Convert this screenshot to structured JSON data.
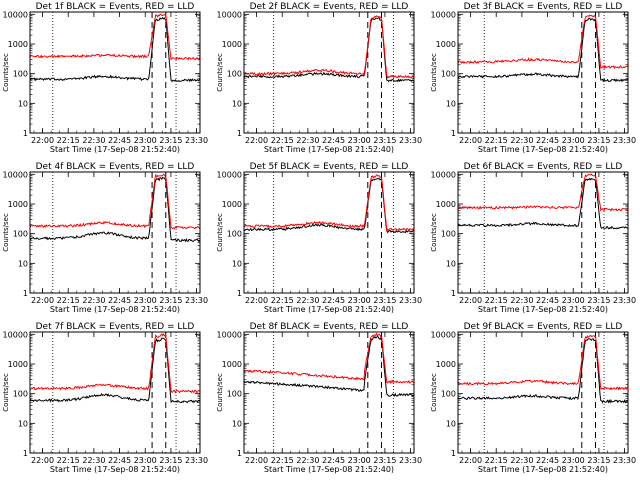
{
  "figure": {
    "ylabel": "Counts/sec",
    "xlabel": "Start Time (17-Sep-08 21:52:40)"
  },
  "chart_data": [
    {
      "type": "line",
      "title": "Det 1f BLACK = Events, RED = LLD",
      "ylabel": "Counts/sec",
      "xlabel": "Start Time (17-Sep-08 21:52:40)",
      "log_y": true,
      "ylim": [
        1,
        12000
      ],
      "yticks": [
        1,
        10,
        100,
        1000,
        10000
      ],
      "xlim": [
        "21:52:40",
        "23:32:00"
      ],
      "xticks": [
        "22:00",
        "22:15",
        "22:30",
        "22:45",
        "23:00",
        "23:15",
        "23:30"
      ],
      "dotted_lines": [
        "22:06",
        "23:18"
      ],
      "dashed_lines": [
        "23:04",
        "23:12"
      ],
      "series": [
        {
          "name": "Events",
          "color": "#000000",
          "base": 65,
          "bump": 1.25,
          "peak": 7500,
          "post": 60
        },
        {
          "name": "LLD",
          "color": "#ff0000",
          "base": 380,
          "bump": 1.1,
          "peak": 9800,
          "post": 320
        }
      ]
    },
    {
      "type": "line",
      "title": "Det 2f BLACK = Events, RED = LLD",
      "ylabel": "Counts/sec",
      "xlabel": "Start Time (17-Sep-08 21:52:40)",
      "log_y": true,
      "ylim": [
        1,
        12000
      ],
      "yticks": [
        1,
        10,
        100,
        1000,
        10000
      ],
      "xlim": [
        "21:52:40",
        "23:32:00"
      ],
      "xticks": [
        "22:00",
        "22:15",
        "22:30",
        "22:45",
        "23:00",
        "23:15",
        "23:30"
      ],
      "dotted_lines": [
        "22:10",
        "23:20"
      ],
      "dashed_lines": [
        "23:05",
        "23:13"
      ],
      "series": [
        {
          "name": "Events",
          "color": "#000000",
          "base": 80,
          "bump": 1.25,
          "peak": 7500,
          "post": 60
        },
        {
          "name": "LLD",
          "color": "#ff0000",
          "base": 100,
          "bump": 1.3,
          "peak": 8500,
          "post": 80
        }
      ]
    },
    {
      "type": "line",
      "title": "Det 3f BLACK = Events, RED = LLD",
      "ylabel": "Counts/sec",
      "xlabel": "Start Time (17-Sep-08 21:52:40)",
      "log_y": true,
      "ylim": [
        1,
        12000
      ],
      "yticks": [
        1,
        10,
        100,
        1000,
        10000
      ],
      "xlim": [
        "21:52:40",
        "23:32:00"
      ],
      "xticks": [
        "22:00",
        "22:15",
        "22:30",
        "22:45",
        "23:00",
        "23:15",
        "23:30"
      ],
      "dotted_lines": [
        "22:08",
        "23:18"
      ],
      "dashed_lines": [
        "23:05",
        "23:13"
      ],
      "series": [
        {
          "name": "Events",
          "color": "#000000",
          "base": 80,
          "bump": 1.2,
          "peak": 7000,
          "post": 60
        },
        {
          "name": "LLD",
          "color": "#ff0000",
          "base": 250,
          "bump": 1.2,
          "peak": 9000,
          "post": 170
        }
      ]
    },
    {
      "type": "line",
      "title": "Det 4f BLACK = Events, RED = LLD",
      "ylabel": "Counts/sec",
      "xlabel": "Start Time (17-Sep-08 21:52:40)",
      "log_y": true,
      "ylim": [
        1,
        12000
      ],
      "yticks": [
        1,
        10,
        100,
        1000,
        10000
      ],
      "xlim": [
        "21:52:40",
        "23:32:00"
      ],
      "xticks": [
        "22:00",
        "22:15",
        "22:30",
        "22:45",
        "23:00",
        "23:15",
        "23:30"
      ],
      "dotted_lines": [
        "22:06",
        "23:18"
      ],
      "dashed_lines": [
        "23:04",
        "23:12"
      ],
      "series": [
        {
          "name": "Events",
          "color": "#000000",
          "base": 70,
          "bump": 1.5,
          "peak": 7500,
          "post": 60
        },
        {
          "name": "LLD",
          "color": "#ff0000",
          "base": 180,
          "bump": 1.3,
          "peak": 9800,
          "post": 160
        }
      ]
    },
    {
      "type": "line",
      "title": "Det 5f BLACK = Events, RED = LLD",
      "ylabel": "Counts/sec",
      "xlabel": "Start Time (17-Sep-08 21:52:40)",
      "log_y": true,
      "ylim": [
        1,
        12000
      ],
      "yticks": [
        1,
        10,
        100,
        1000,
        10000
      ],
      "xlim": [
        "21:52:40",
        "23:32:00"
      ],
      "xticks": [
        "22:00",
        "22:15",
        "22:30",
        "22:45",
        "23:00",
        "23:15",
        "23:30"
      ],
      "dotted_lines": [
        "22:10",
        "23:20"
      ],
      "dashed_lines": [
        "23:05",
        "23:13"
      ],
      "series": [
        {
          "name": "Events",
          "color": "#000000",
          "base": 140,
          "bump": 1.4,
          "peak": 7000,
          "post": 120
        },
        {
          "name": "LLD",
          "color": "#ff0000",
          "base": 180,
          "bump": 1.3,
          "peak": 9000,
          "post": 140
        }
      ]
    },
    {
      "type": "line",
      "title": "Det 6f BLACK = Events, RED = LLD",
      "ylabel": "Counts/sec",
      "xlabel": "Start Time (17-Sep-08 21:52:40)",
      "log_y": true,
      "ylim": [
        1,
        12000
      ],
      "yticks": [
        1,
        10,
        100,
        1000,
        10000
      ],
      "xlim": [
        "21:52:40",
        "23:32:00"
      ],
      "xticks": [
        "22:00",
        "22:15",
        "22:30",
        "22:45",
        "23:00",
        "23:15",
        "23:30"
      ],
      "dotted_lines": [
        "22:08",
        "23:18"
      ],
      "dashed_lines": [
        "23:05",
        "23:13"
      ],
      "series": [
        {
          "name": "Events",
          "color": "#000000",
          "base": 190,
          "bump": 1.15,
          "peak": 7000,
          "post": 160
        },
        {
          "name": "LLD",
          "color": "#ff0000",
          "base": 750,
          "bump": 1.05,
          "peak": 9500,
          "post": 650
        }
      ]
    },
    {
      "type": "line",
      "title": "Det 7f BLACK = Events, RED = LLD",
      "ylabel": "Counts/sec",
      "xlabel": "Start Time (17-Sep-08 21:52:40)",
      "log_y": true,
      "ylim": [
        1,
        12000
      ],
      "yticks": [
        1,
        10,
        100,
        1000,
        10000
      ],
      "xlim": [
        "21:52:40",
        "23:32:00"
      ],
      "xticks": [
        "22:00",
        "22:15",
        "22:30",
        "22:45",
        "23:00",
        "23:15",
        "23:30"
      ],
      "dotted_lines": [
        "22:06",
        "23:18"
      ],
      "dashed_lines": [
        "23:04",
        "23:12"
      ],
      "series": [
        {
          "name": "Events",
          "color": "#000000",
          "base": 60,
          "bump": 1.5,
          "peak": 7000,
          "post": 55
        },
        {
          "name": "LLD",
          "color": "#ff0000",
          "base": 150,
          "bump": 1.3,
          "peak": 9500,
          "post": 120
        }
      ]
    },
    {
      "type": "line",
      "title": "Det 8f BLACK = Events, RED = LLD",
      "ylabel": "Counts/sec",
      "xlabel": "Start Time (17-Sep-08 21:52:40)",
      "log_y": true,
      "ylim": [
        1,
        12000
      ],
      "yticks": [
        1,
        10,
        100,
        1000,
        10000
      ],
      "xlim": [
        "21:52:40",
        "23:32:00"
      ],
      "xticks": [
        "22:00",
        "22:15",
        "22:30",
        "22:45",
        "23:00",
        "23:15",
        "23:30"
      ],
      "dotted_lines": [
        "22:10",
        "23:20"
      ],
      "dashed_lines": [
        "23:05",
        "23:13"
      ],
      "series": [
        {
          "name": "Events",
          "color": "#000000",
          "base": 250,
          "bump": 0.5,
          "peak": 8000,
          "post": 90
        },
        {
          "name": "LLD",
          "color": "#ff0000",
          "base": 600,
          "bump": 0.5,
          "peak": 9800,
          "post": 250
        }
      ]
    },
    {
      "type": "line",
      "title": "Det 9f BLACK = Events, RED = LLD",
      "ylabel": "Counts/sec",
      "xlabel": "Start Time (17-Sep-08 21:52:40)",
      "log_y": true,
      "ylim": [
        1,
        12000
      ],
      "yticks": [
        1,
        10,
        100,
        1000,
        10000
      ],
      "xlim": [
        "21:52:40",
        "23:32:00"
      ],
      "xticks": [
        "22:00",
        "22:15",
        "22:30",
        "22:45",
        "23:00",
        "23:15",
        "23:30"
      ],
      "dotted_lines": [
        "22:08",
        "23:18"
      ],
      "dashed_lines": [
        "23:05",
        "23:13"
      ],
      "series": [
        {
          "name": "Events",
          "color": "#000000",
          "base": 70,
          "bump": 1.2,
          "peak": 7000,
          "post": 55
        },
        {
          "name": "LLD",
          "color": "#ff0000",
          "base": 220,
          "bump": 1.2,
          "peak": 9000,
          "post": 150
        }
      ]
    }
  ]
}
